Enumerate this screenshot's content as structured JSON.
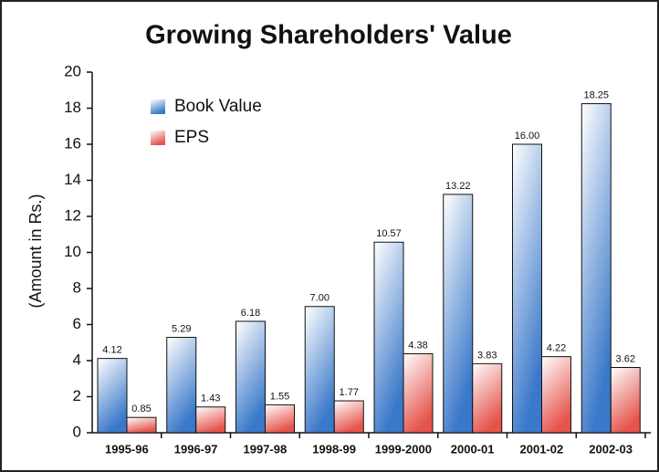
{
  "chart_data": {
    "type": "bar",
    "title": "Growing Shareholders' Value",
    "y_label": "(Amount in Rs.)",
    "categories": [
      "1995-96",
      "1996-97",
      "1997-98",
      "1998-99",
      "1999-2000",
      "2000-01",
      "2001-02",
      "2002-03"
    ],
    "series": [
      {
        "name": "Book Value",
        "color": "#3a78c9",
        "values": [
          4.12,
          5.29,
          6.18,
          7,
          10.57,
          13.22,
          16,
          18.25
        ],
        "value_labels": [
          "4.12",
          "5.29",
          "6.18",
          "7.00",
          "10.57",
          "13.22",
          "16.00",
          "18.25"
        ]
      },
      {
        "name": "EPS",
        "color": "#e5544c",
        "values": [
          0.85,
          1.43,
          1.55,
          1.77,
          4.38,
          3.83,
          4.22,
          3.62
        ],
        "value_labels": [
          "0.85",
          "1.43",
          "1.55",
          "1.77",
          "4.38",
          "3.83",
          "4.22",
          "3.62"
        ]
      }
    ],
    "ylim": [
      0,
      20
    ],
    "yticks": [
      0,
      2,
      4,
      6,
      8,
      10,
      12,
      14,
      16,
      18,
      20
    ],
    "legend": "upper left"
  }
}
